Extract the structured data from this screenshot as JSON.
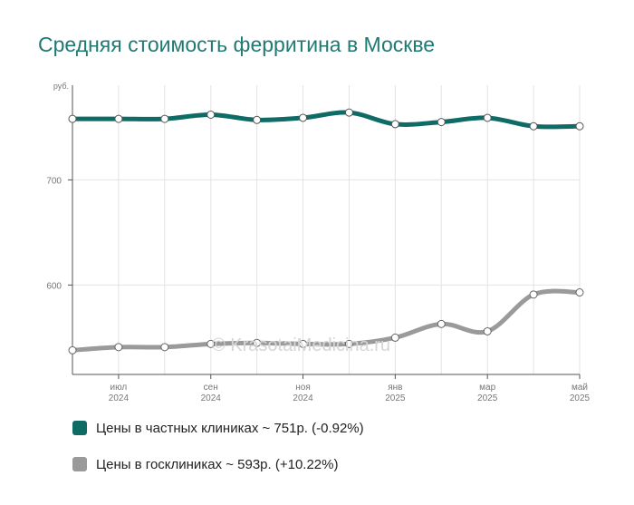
{
  "title": "Средняя стоимость ферритина в Москве",
  "watermark": "© KrasotaiMedicina.ru",
  "colors": {
    "title": "#1f7a73",
    "private": "#0f6b66",
    "public": "#9a9a9a",
    "grid": "#e3e3e3",
    "axis": "#555555"
  },
  "chart_data": {
    "type": "line",
    "ylabel": "руб.",
    "ylim": [
      515,
      790
    ],
    "yticks": [
      600,
      700
    ],
    "grid": true,
    "x_months": [
      "2024-06",
      "2024-07",
      "2024-08",
      "2024-09",
      "2024-10",
      "2024-11",
      "2024-12",
      "2025-01",
      "2025-02",
      "2025-03",
      "2025-04",
      "2025-05"
    ],
    "xtick_labels": [
      {
        "month": "2024-07",
        "line1": "июл",
        "line2": "2024"
      },
      {
        "month": "2024-09",
        "line1": "сен",
        "line2": "2024"
      },
      {
        "month": "2024-11",
        "line1": "ноя",
        "line2": "2024"
      },
      {
        "month": "2025-01",
        "line1": "янв",
        "line2": "2025"
      },
      {
        "month": "2025-03",
        "line1": "мар",
        "line2": "2025"
      },
      {
        "month": "2025-05",
        "line1": "май",
        "line2": "2025"
      }
    ],
    "series": [
      {
        "name": "Цены в частных клиниках ~ 751р. (-0.92%)",
        "color": "#0f6b66",
        "values": [
          758,
          758,
          758,
          762,
          757,
          759,
          764,
          753,
          755,
          759,
          751,
          751
        ]
      },
      {
        "name": "Цены в госклиниках ~ 593р. (+10.22%)",
        "color": "#9a9a9a",
        "values": [
          538,
          541,
          541,
          544,
          545,
          544,
          544,
          550,
          563,
          556,
          591,
          593
        ]
      }
    ]
  },
  "legend": {
    "private": "Цены в частных клиниках ~ 751р. (-0.92%)",
    "public": "Цены в госклиниках ~ 593р. (+10.22%)"
  }
}
